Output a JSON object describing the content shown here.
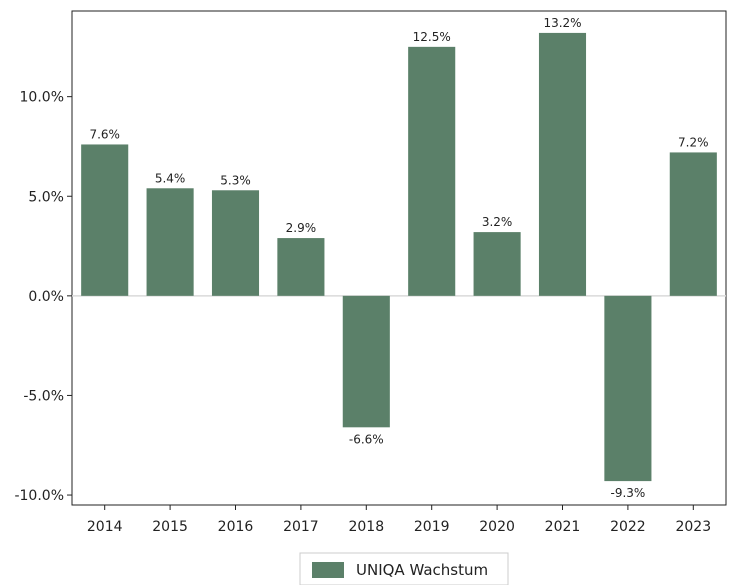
{
  "chart_data": {
    "type": "bar",
    "categories": [
      "2014",
      "2015",
      "2016",
      "2017",
      "2018",
      "2019",
      "2020",
      "2021",
      "2022",
      "2023"
    ],
    "series": [
      {
        "name": "UNIQA Wachstum",
        "values": [
          7.6,
          5.4,
          5.3,
          2.9,
          -6.6,
          12.5,
          3.2,
          13.2,
          -9.3,
          7.2
        ],
        "labels": [
          "7.6%",
          "5.4%",
          "5.3%",
          "2.9%",
          "-6.6%",
          "12.5%",
          "3.2%",
          "13.2%",
          "-9.3%",
          "7.2%"
        ],
        "color": "#5b8069"
      }
    ],
    "ylim": [
      -10.5,
      14.3
    ],
    "yticks": [
      -10,
      -5,
      0,
      5,
      10
    ],
    "ytick_labels": [
      "-10.0%",
      "-5.0%",
      "0.0%",
      "5.0%",
      "10.0%"
    ],
    "title": "",
    "xlabel": "",
    "ylabel": "",
    "grid": false,
    "zero_line": true,
    "legend_position": "bottom-center"
  }
}
